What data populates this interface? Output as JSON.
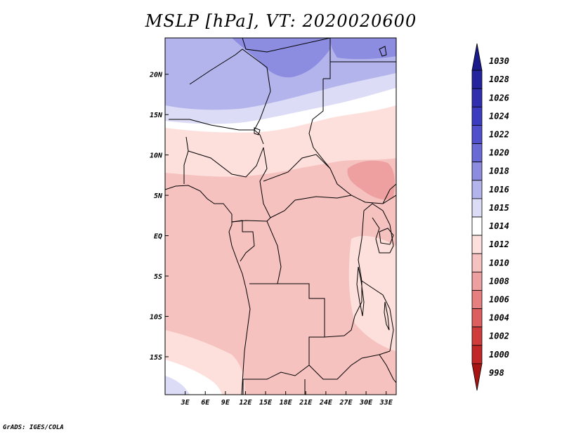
{
  "title": "MSLP [hPa], VT: 2020020600",
  "credit": "GrADS: IGES/COLA",
  "map": {
    "lat_labels": [
      "20N",
      "15N",
      "10N",
      "5N",
      "EQ",
      "5S",
      "10S",
      "15S"
    ],
    "lat_values": [
      20,
      15,
      10,
      5,
      0,
      -5,
      -10,
      -15
    ],
    "lon_labels": [
      "3E",
      "6E",
      "9E",
      "12E",
      "15E",
      "18E",
      "21E",
      "24E",
      "27E",
      "30E",
      "33E"
    ],
    "lon_values": [
      3,
      6,
      9,
      12,
      15,
      18,
      21,
      24,
      27,
      30,
      33
    ],
    "lat_range": [
      -19.7,
      24.5
    ],
    "lon_range": [
      0,
      34.5
    ]
  },
  "colorbar": {
    "levels": [
      "1030",
      "1028",
      "1026",
      "1024",
      "1022",
      "1020",
      "1018",
      "1016",
      "1015",
      "1014",
      "1012",
      "1010",
      "1008",
      "1006",
      "1004",
      "1002",
      "1000",
      "998"
    ],
    "colors": [
      "#1a1a8c",
      "#24249e",
      "#2f2faf",
      "#3c3cc0",
      "#5050cc",
      "#6a6ad6",
      "#8c8ce0",
      "#b4b4ec",
      "#dcdcf6",
      "#ffffff",
      "#fde0dc",
      "#f6c2c0",
      "#eea0a0",
      "#e68080",
      "#dc5e5e",
      "#d03c3c",
      "#c22626",
      "#a81414"
    ]
  },
  "field_colors": {
    "blue_dark": "#8c8ce0",
    "blue_mid": "#b4b4ec",
    "blue_light": "#dcdcf6",
    "white": "#ffffff",
    "pink_light": "#fde0dc",
    "pink": "#f6c2c0",
    "pink_dark": "#eea0a0"
  }
}
